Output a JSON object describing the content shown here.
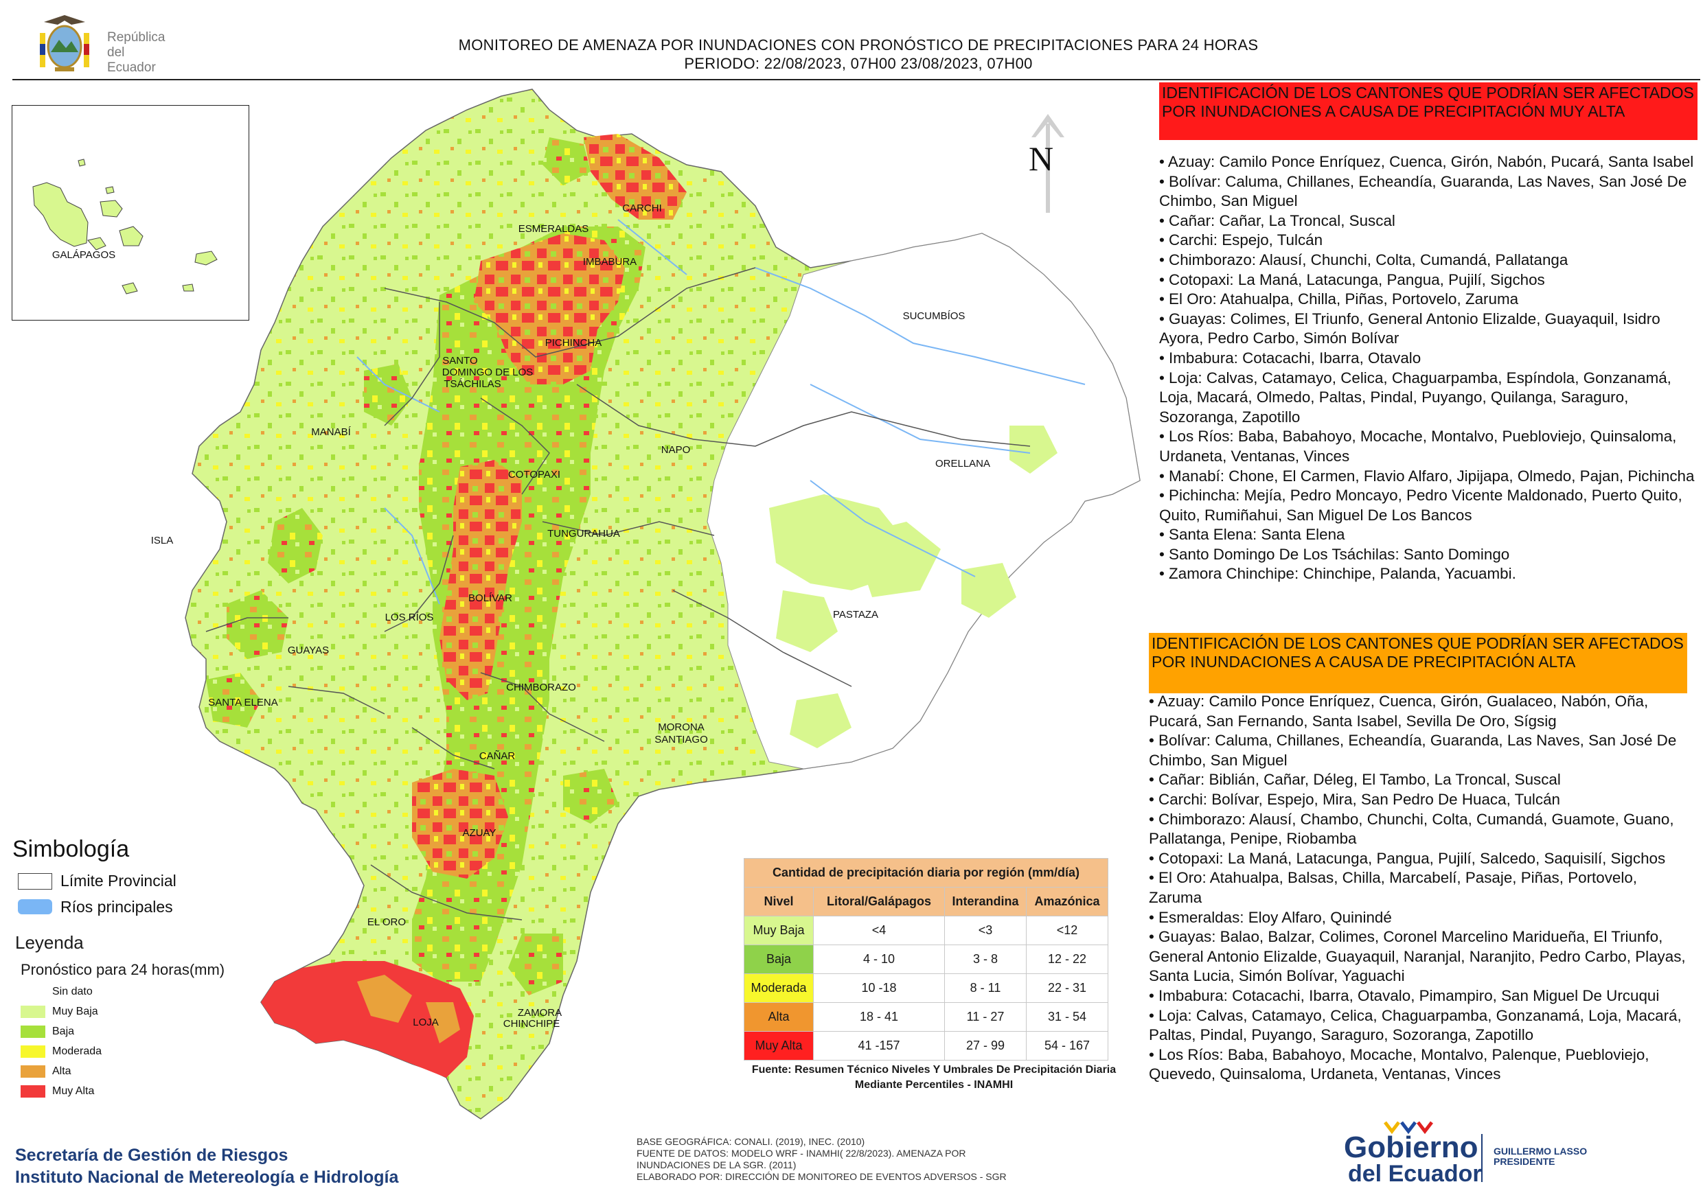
{
  "header": {
    "logo_text": [
      "República",
      "del Ecuador"
    ],
    "title_line1": "MONITOREO DE AMENAZA POR INUNDACIONES  CON PRONÓSTICO DE  PRECIPITACIONES PARA 24 HORAS",
    "title_line2": "PERIODO: 22/08/2023, 07H00 23/08/2023, 07H00"
  },
  "map": {
    "north_label": "N",
    "inset_label": "GALÁPAGOS",
    "province_labels": [
      "CARCHI",
      "ESMERALDAS",
      "IMBABURA",
      "SUCUMBÍOS",
      "PICHINCHA",
      "SANTO",
      "DOMINGO DE LOS",
      "TSÁCHILAS",
      "MANABÍ",
      "NAPO",
      "ORELLANA",
      "COTOPAXI",
      "TUNGURAHUA",
      "ISLA",
      "BOLÍVAR",
      "LOS RÍOS",
      "PASTAZA",
      "GUAYAS",
      "CHIMBORAZO",
      "SANTA ELENA",
      "MORONA",
      "SANTIAGO",
      "CAÑAR",
      "AZUAY",
      "EL ORO",
      "ZAMORA",
      "CHINCHIPE",
      "LOJA"
    ],
    "colors": {
      "muy_baja": "#d8f78f",
      "baja": "#a6e03b",
      "moderada": "#f7f72c",
      "alta": "#e9a23b",
      "muy_alta": "#f23a3a",
      "sin_dato": "#ffffff",
      "rivers": "#7ab6f5"
    }
  },
  "muy_alta_section": {
    "heading": "IDENTIFICACIÓN DE LOS CANTONES QUE PODRÍAN SER AFECTADOS POR INUNDACIONES  A CAUSA DE PRECIPITACIÓN MUY ALTA",
    "items": [
      "• Azuay: Camilo Ponce Enríquez, Cuenca, Girón, Nabón, Pucará, Santa Isabel",
      "• Bolívar: Caluma, Chillanes, Echeandía, Guaranda, Las Naves, San José De Chimbo, San Miguel",
      "• Cañar: Cañar, La Troncal, Suscal",
      "• Carchi: Espejo, Tulcán",
      "• Chimborazo: Alausí, Chunchi, Colta, Cumandá, Pallatanga",
      "• Cotopaxi: La Maná, Latacunga, Pangua, Pujilí, Sigchos",
      "• El Oro: Atahualpa, Chilla, Piñas, Portovelo, Zaruma",
      "• Guayas: Colimes, El Triunfo, General Antonio Elizalde, Guayaquil, Isidro Ayora, Pedro Carbo, Simón Bolívar",
      "• Imbabura: Cotacachi, Ibarra, Otavalo",
      "• Loja: Calvas, Catamayo, Celica, Chaguarpamba, Espíndola, Gonzanamá, Loja, Macará, Olmedo, Paltas, Pindal, Puyango, Quilanga, Saraguro, Sozoranga, Zapotillo",
      "• Los Ríos: Baba, Babahoyo, Mocache, Montalvo, Puebloviejo, Quinsaloma, Urdaneta, Ventanas, Vinces",
      "• Manabí: Chone, El Carmen, Flavio Alfaro, Jipijapa, Olmedo, Pajan, Pichincha",
      "• Pichincha: Mejía, Pedro Moncayo, Pedro Vicente Maldonado, Puerto Quito, Quito, Rumiñahui, San Miguel De Los Bancos",
      "• Santa Elena: Santa Elena",
      "• Santo Domingo De Los Tsáchilas: Santo Domingo",
      "• Zamora Chinchipe: Chinchipe, Palanda, Yacuambi."
    ]
  },
  "alta_section": {
    "heading": "IDENTIFICACIÓN DE LOS CANTONES QUE  PODRÍAN SER AFECTADOS POR INUNDACIONES  A CAUSA DE PRECIPITACIÓN ALTA",
    "items": [
      "• Azuay: Camilo Ponce Enríquez, Cuenca, Girón, Gualaceo, Nabón, Oña, Pucará, San Fernando, Santa Isabel, Sevilla De Oro, Sígsig",
      "• Bolívar: Caluma, Chillanes, Echeandía, Guaranda, Las Naves, San José De Chimbo, San Miguel",
      "• Cañar: Biblián, Cañar, Déleg, El Tambo, La Troncal, Suscal",
      "• Carchi: Bolívar, Espejo, Mira, San Pedro De Huaca, Tulcán",
      "• Chimborazo: Alausí, Chambo, Chunchi, Colta, Cumandá, Guamote, Guano, Pallatanga, Penipe, Riobamba",
      "• Cotopaxi: La Maná, Latacunga, Pangua, Pujilí, Salcedo, Saquisilí, Sigchos",
      "• El Oro: Atahualpa, Balsas, Chilla, Marcabelí, Pasaje, Piñas, Portovelo, Zaruma",
      "• Esmeraldas: Eloy Alfaro, Quinindé",
      "• Guayas: Balao, Balzar, Colimes, Coronel Marcelino Maridueña, El Triunfo, General Antonio Elizalde, Guayaquil, Naranjal, Naranjito, Pedro Carbo, Playas, Santa Lucia, Simón Bolívar, Yaguachi",
      "• Imbabura: Cotacachi, Ibarra, Otavalo, Pimampiro, San Miguel De Urcuqui",
      "• Loja: Calvas, Catamayo, Celica, Chaguarpamba, Gonzanamá, Loja, Macará, Paltas, Pindal, Puyango, Saraguro, Sozoranga, Zapotillo",
      "• Los Ríos: Baba, Babahoyo, Mocache, Montalvo, Palenque, Puebloviejo, Quevedo, Quinsaloma, Urdaneta, Ventanas, Vinces"
    ]
  },
  "simbologia": {
    "title": "Simbología",
    "limite": "Límite Provincial",
    "rios": "Ríos principales"
  },
  "leyenda": {
    "title": "Leyenda",
    "subtitle": "Pronóstico para 24 horas(mm)",
    "items": [
      "Sin dato",
      "Muy Baja",
      "Baja",
      "Moderada",
      "Alta",
      "Muy Alta"
    ]
  },
  "precip_table": {
    "title": "Cantidad de precipitación diaria por región (mm/día)",
    "headers": [
      "Nivel",
      "Litoral/Galápagos",
      "Interandina",
      "Amazónica"
    ],
    "rows": [
      [
        "Muy Baja",
        "<4",
        "<3",
        "<12"
      ],
      [
        "Baja",
        "4 - 10",
        "3 - 8",
        "12 - 22"
      ],
      [
        "Moderada",
        "10 -18",
        "8 - 11",
        "22 - 31"
      ],
      [
        "Alta",
        "18 - 41",
        "11 - 27",
        "31 - 54"
      ],
      [
        "Muy Alta",
        "41 -157",
        "27 - 99",
        "54 - 167"
      ]
    ],
    "row_colors": [
      "#d8f78f",
      "#8fd24a",
      "#f7f72c",
      "#f0962f",
      "#ff2020"
    ],
    "source": "Fuente: Resumen Técnico Niveles Y Umbrales De Precipitación Diaria Mediante Percentiles - INAMHI"
  },
  "footer": {
    "org_line1": "Secretaría de Gestión de Riesgos",
    "org_line2": "Instituto Nacional de Metereología e Hidrología",
    "credits": [
      "BASE GEOGRÁFICA: CONALI. (2019), INEC. (2010)",
      "FUENTE DE DATOS: MODELO WRF - INAMHI( 22/8/2023).  AMENAZA POR",
      "INUNDACIONES DE LA SGR. (2011)",
      "ELABORADO POR: DIRECCIÓN DE MONITOREO DE EVENTOS ADVERSOS - SGR"
    ],
    "gov_logo": [
      "Gobierno",
      "del Ecuador"
    ],
    "president": [
      "GUILLERMO LASSO",
      "PRESIDENTE"
    ]
  }
}
